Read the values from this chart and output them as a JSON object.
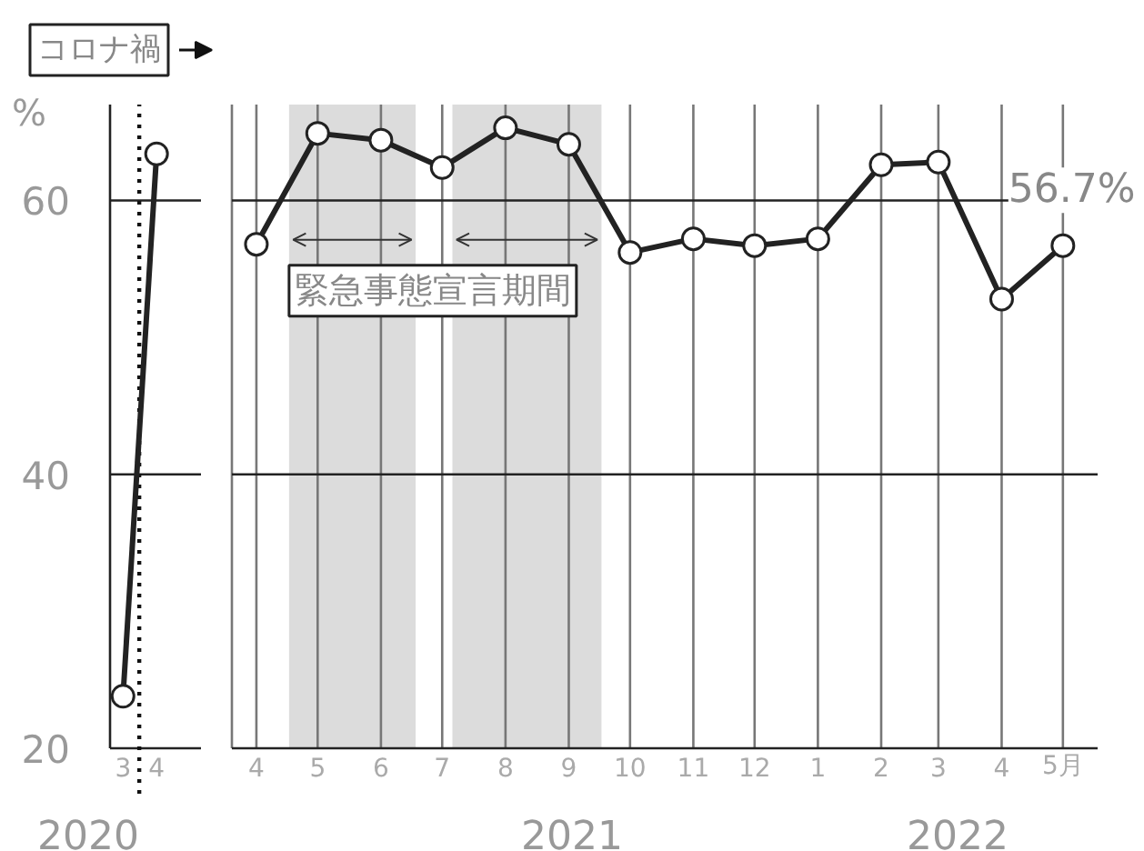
{
  "chart_data": [
    {
      "type": "line",
      "x": [
        "2020-03",
        "2020-04"
      ],
      "series": [
        {
          "color": "#222222",
          "values": [
            23.8,
            63.4
          ]
        }
      ],
      "xlim": [
        "2020-02-18",
        "2020-05-12"
      ],
      "xticks": [
        {
          "value": "2020-03",
          "label": "3"
        },
        {
          "value": "2020-04",
          "label": "4"
        }
      ],
      "ylabel": "%",
      "ylim": [
        20,
        67
      ],
      "yticks": [
        20,
        40,
        60
      ],
      "grid": "y",
      "marker": "circle",
      "line_style": "solid",
      "ref_lines": [
        {
          "axis": "x",
          "value": "2020-03-16",
          "label": "コロナ禍",
          "line_style": "dotted"
        }
      ],
      "annotations": [
        "2020"
      ]
    },
    {
      "type": "line",
      "x": [
        "2021-04",
        "2021-05",
        "2021-06",
        "2021-07",
        "2021-08",
        "2021-09",
        "2021-10",
        "2021-11",
        "2021-12",
        "2022-01",
        "2022-02",
        "2022-03",
        "2022-04",
        "2022-05"
      ],
      "series": [
        {
          "color": "#222222",
          "values": [
            56.8,
            64.9,
            64.4,
            62.4,
            65.3,
            64.1,
            56.2,
            57.2,
            56.7,
            57.2,
            62.6,
            62.8,
            52.8,
            56.7
          ],
          "value_labels": [
            null,
            null,
            null,
            null,
            null,
            null,
            null,
            null,
            null,
            null,
            null,
            null,
            null,
            "56.7%"
          ]
        }
      ],
      "xlim": [
        "2021-03-20",
        "2022-05-18"
      ],
      "xticks": [
        {
          "value": "2021-04",
          "label": "4"
        },
        {
          "value": "2021-05",
          "label": "5"
        },
        {
          "value": "2021-06",
          "label": "6"
        },
        {
          "value": "2021-07",
          "label": "7"
        },
        {
          "value": "2021-08",
          "label": "8"
        },
        {
          "value": "2021-09",
          "label": "9"
        },
        {
          "value": "2021-10",
          "label": "10"
        },
        {
          "value": "2021-11",
          "label": "11"
        },
        {
          "value": "2021-12",
          "label": "12"
        },
        {
          "value": "2022-01",
          "label": "1"
        },
        {
          "value": "2022-02",
          "label": "2"
        },
        {
          "value": "2022-03",
          "label": "3"
        },
        {
          "value": "2022-04",
          "label": "4"
        },
        {
          "value": "2022-05",
          "label": "5月"
        }
      ],
      "ylim": [
        20,
        67
      ],
      "yticks": [
        20,
        40,
        60
      ],
      "tick_labels": "x",
      "grid": true,
      "marker": "circle",
      "line_style": "solid",
      "bands": [
        {
          "axis": "x",
          "from": "2021-04-17",
          "to": "2021-06-18",
          "color": "#dcdcdc"
        },
        {
          "axis": "x",
          "from": "2021-07-06",
          "to": "2021-09-17",
          "color": "#dcdcdc"
        }
      ],
      "annotations": [
        "緊急事態宣言期間",
        "2021",
        "2022"
      ]
    }
  ]
}
